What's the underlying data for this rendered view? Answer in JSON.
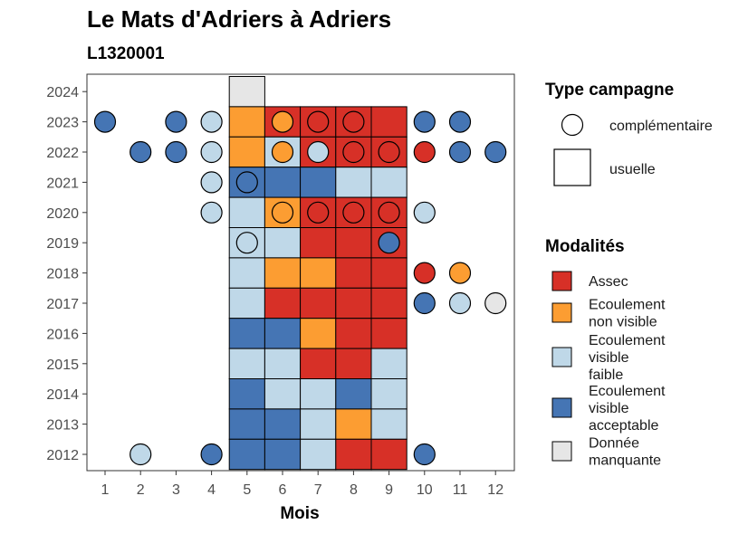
{
  "title": "Le Mats d'Adriers à Adriers",
  "subtitle": "L1320001",
  "colors": {
    "Assec": "#d73027",
    "Ecoulement non visible": "#fc9d32",
    "Ecoulement visible faible": "#bfd8e8",
    "Ecoulement visible acceptable": "#4575b4",
    "Donnée manquante": "#e6e6e6"
  },
  "chart_data": {
    "type": "heatmap",
    "xlabel": "Mois",
    "ylabel": "",
    "x_ticks": [
      "1",
      "2",
      "3",
      "4",
      "5",
      "6",
      "7",
      "8",
      "9",
      "10",
      "11",
      "12"
    ],
    "y_ticks": [
      "2012",
      "2013",
      "2014",
      "2015",
      "2016",
      "2017",
      "2018",
      "2019",
      "2020",
      "2021",
      "2022",
      "2023",
      "2024"
    ],
    "legend_campaign": {
      "title": "Type campagne",
      "items": [
        {
          "label": "complémentaire",
          "shape": "circle"
        },
        {
          "label": "usuelle",
          "shape": "square"
        }
      ]
    },
    "legend_modalities": {
      "title": "Modalités",
      "items": [
        {
          "key": "Assec",
          "lines": [
            "Assec"
          ]
        },
        {
          "key": "Ecoulement non visible",
          "lines": [
            "Ecoulement",
            "non visible"
          ]
        },
        {
          "key": "Ecoulement visible faible",
          "lines": [
            "Ecoulement",
            "visible",
            "faible"
          ]
        },
        {
          "key": "Ecoulement visible acceptable",
          "lines": [
            "Ecoulement",
            "visible",
            "acceptable"
          ]
        },
        {
          "key": "Donnée manquante",
          "lines": [
            "Donnée",
            "manquante"
          ]
        }
      ]
    },
    "usuelle": [
      {
        "year": 2024,
        "month": 5,
        "mod": "Donnée manquante"
      },
      {
        "year": 2023,
        "month": 5,
        "mod": "Ecoulement non visible"
      },
      {
        "year": 2023,
        "month": 6,
        "mod": "Assec"
      },
      {
        "year": 2023,
        "month": 7,
        "mod": "Assec"
      },
      {
        "year": 2023,
        "month": 8,
        "mod": "Assec"
      },
      {
        "year": 2023,
        "month": 9,
        "mod": "Assec"
      },
      {
        "year": 2022,
        "month": 5,
        "mod": "Ecoulement non visible"
      },
      {
        "year": 2022,
        "month": 6,
        "mod": "Ecoulement visible faible"
      },
      {
        "year": 2022,
        "month": 7,
        "mod": "Assec"
      },
      {
        "year": 2022,
        "month": 8,
        "mod": "Assec"
      },
      {
        "year": 2022,
        "month": 9,
        "mod": "Assec"
      },
      {
        "year": 2021,
        "month": 5,
        "mod": "Ecoulement visible acceptable"
      },
      {
        "year": 2021,
        "month": 6,
        "mod": "Ecoulement visible acceptable"
      },
      {
        "year": 2021,
        "month": 7,
        "mod": "Ecoulement visible acceptable"
      },
      {
        "year": 2021,
        "month": 8,
        "mod": "Ecoulement visible faible"
      },
      {
        "year": 2021,
        "month": 9,
        "mod": "Ecoulement visible faible"
      },
      {
        "year": 2020,
        "month": 5,
        "mod": "Ecoulement visible faible"
      },
      {
        "year": 2020,
        "month": 6,
        "mod": "Ecoulement non visible"
      },
      {
        "year": 2020,
        "month": 7,
        "mod": "Assec"
      },
      {
        "year": 2020,
        "month": 8,
        "mod": "Assec"
      },
      {
        "year": 2020,
        "month": 9,
        "mod": "Assec"
      },
      {
        "year": 2019,
        "month": 5,
        "mod": "Ecoulement visible faible"
      },
      {
        "year": 2019,
        "month": 6,
        "mod": "Ecoulement visible faible"
      },
      {
        "year": 2019,
        "month": 7,
        "mod": "Assec"
      },
      {
        "year": 2019,
        "month": 8,
        "mod": "Assec"
      },
      {
        "year": 2019,
        "month": 9,
        "mod": "Assec"
      },
      {
        "year": 2018,
        "month": 5,
        "mod": "Ecoulement visible faible"
      },
      {
        "year": 2018,
        "month": 6,
        "mod": "Ecoulement non visible"
      },
      {
        "year": 2018,
        "month": 7,
        "mod": "Ecoulement non visible"
      },
      {
        "year": 2018,
        "month": 8,
        "mod": "Assec"
      },
      {
        "year": 2018,
        "month": 9,
        "mod": "Assec"
      },
      {
        "year": 2017,
        "month": 5,
        "mod": "Ecoulement visible faible"
      },
      {
        "year": 2017,
        "month": 6,
        "mod": "Assec"
      },
      {
        "year": 2017,
        "month": 7,
        "mod": "Assec"
      },
      {
        "year": 2017,
        "month": 8,
        "mod": "Assec"
      },
      {
        "year": 2017,
        "month": 9,
        "mod": "Assec"
      },
      {
        "year": 2016,
        "month": 5,
        "mod": "Ecoulement visible acceptable"
      },
      {
        "year": 2016,
        "month": 6,
        "mod": "Ecoulement visible acceptable"
      },
      {
        "year": 2016,
        "month": 7,
        "mod": "Ecoulement non visible"
      },
      {
        "year": 2016,
        "month": 8,
        "mod": "Assec"
      },
      {
        "year": 2016,
        "month": 9,
        "mod": "Assec"
      },
      {
        "year": 2015,
        "month": 5,
        "mod": "Ecoulement visible faible"
      },
      {
        "year": 2015,
        "month": 6,
        "mod": "Ecoulement visible faible"
      },
      {
        "year": 2015,
        "month": 7,
        "mod": "Assec"
      },
      {
        "year": 2015,
        "month": 8,
        "mod": "Assec"
      },
      {
        "year": 2015,
        "month": 9,
        "mod": "Ecoulement visible faible"
      },
      {
        "year": 2014,
        "month": 5,
        "mod": "Ecoulement visible acceptable"
      },
      {
        "year": 2014,
        "month": 6,
        "mod": "Ecoulement visible faible"
      },
      {
        "year": 2014,
        "month": 7,
        "mod": "Ecoulement visible faible"
      },
      {
        "year": 2014,
        "month": 8,
        "mod": "Ecoulement visible acceptable"
      },
      {
        "year": 2014,
        "month": 9,
        "mod": "Ecoulement visible faible"
      },
      {
        "year": 2013,
        "month": 5,
        "mod": "Ecoulement visible acceptable"
      },
      {
        "year": 2013,
        "month": 6,
        "mod": "Ecoulement visible acceptable"
      },
      {
        "year": 2013,
        "month": 7,
        "mod": "Ecoulement visible faible"
      },
      {
        "year": 2013,
        "month": 8,
        "mod": "Ecoulement non visible"
      },
      {
        "year": 2013,
        "month": 9,
        "mod": "Ecoulement visible faible"
      },
      {
        "year": 2012,
        "month": 5,
        "mod": "Ecoulement visible acceptable"
      },
      {
        "year": 2012,
        "month": 6,
        "mod": "Ecoulement visible acceptable"
      },
      {
        "year": 2012,
        "month": 7,
        "mod": "Ecoulement visible faible"
      },
      {
        "year": 2012,
        "month": 8,
        "mod": "Assec"
      },
      {
        "year": 2012,
        "month": 9,
        "mod": "Assec"
      }
    ],
    "complementaire": [
      {
        "year": 2023,
        "month": 1,
        "mod": "Ecoulement visible acceptable"
      },
      {
        "year": 2023,
        "month": 3,
        "mod": "Ecoulement visible acceptable"
      },
      {
        "year": 2023,
        "month": 4,
        "mod": "Ecoulement visible faible"
      },
      {
        "year": 2023,
        "month": 6,
        "mod": "Ecoulement non visible"
      },
      {
        "year": 2023,
        "month": 7,
        "mod": "Assec"
      },
      {
        "year": 2023,
        "month": 8,
        "mod": "Assec"
      },
      {
        "year": 2023,
        "month": 10,
        "mod": "Ecoulement visible acceptable"
      },
      {
        "year": 2023,
        "month": 11,
        "mod": "Ecoulement visible acceptable"
      },
      {
        "year": 2022,
        "month": 2,
        "mod": "Ecoulement visible acceptable"
      },
      {
        "year": 2022,
        "month": 3,
        "mod": "Ecoulement visible acceptable"
      },
      {
        "year": 2022,
        "month": 4,
        "mod": "Ecoulement visible faible"
      },
      {
        "year": 2022,
        "month": 6,
        "mod": "Ecoulement non visible"
      },
      {
        "year": 2022,
        "month": 7,
        "mod": "Ecoulement visible faible"
      },
      {
        "year": 2022,
        "month": 8,
        "mod": "Assec"
      },
      {
        "year": 2022,
        "month": 9,
        "mod": "Assec"
      },
      {
        "year": 2022,
        "month": 10,
        "mod": "Assec"
      },
      {
        "year": 2022,
        "month": 11,
        "mod": "Ecoulement visible acceptable"
      },
      {
        "year": 2022,
        "month": 12,
        "mod": "Ecoulement visible acceptable"
      },
      {
        "year": 2021,
        "month": 4,
        "mod": "Ecoulement visible faible"
      },
      {
        "year": 2021,
        "month": 5,
        "mod": "Ecoulement visible acceptable"
      },
      {
        "year": 2020,
        "month": 4,
        "mod": "Ecoulement visible faible"
      },
      {
        "year": 2020,
        "month": 6,
        "mod": "Ecoulement non visible"
      },
      {
        "year": 2020,
        "month": 7,
        "mod": "Assec"
      },
      {
        "year": 2020,
        "month": 8,
        "mod": "Assec"
      },
      {
        "year": 2020,
        "month": 9,
        "mod": "Assec"
      },
      {
        "year": 2020,
        "month": 10,
        "mod": "Ecoulement visible faible"
      },
      {
        "year": 2019,
        "month": 5,
        "mod": "Ecoulement visible faible"
      },
      {
        "year": 2019,
        "month": 9,
        "mod": "Ecoulement visible acceptable"
      },
      {
        "year": 2018,
        "month": 10,
        "mod": "Assec"
      },
      {
        "year": 2018,
        "month": 11,
        "mod": "Ecoulement non visible"
      },
      {
        "year": 2017,
        "month": 10,
        "mod": "Ecoulement visible acceptable"
      },
      {
        "year": 2017,
        "month": 11,
        "mod": "Ecoulement visible faible"
      },
      {
        "year": 2017,
        "month": 12,
        "mod": "Donnée manquante"
      },
      {
        "year": 2012,
        "month": 2,
        "mod": "Ecoulement visible faible"
      },
      {
        "year": 2012,
        "month": 4,
        "mod": "Ecoulement visible acceptable"
      },
      {
        "year": 2012,
        "month": 10,
        "mod": "Ecoulement visible acceptable"
      }
    ]
  }
}
